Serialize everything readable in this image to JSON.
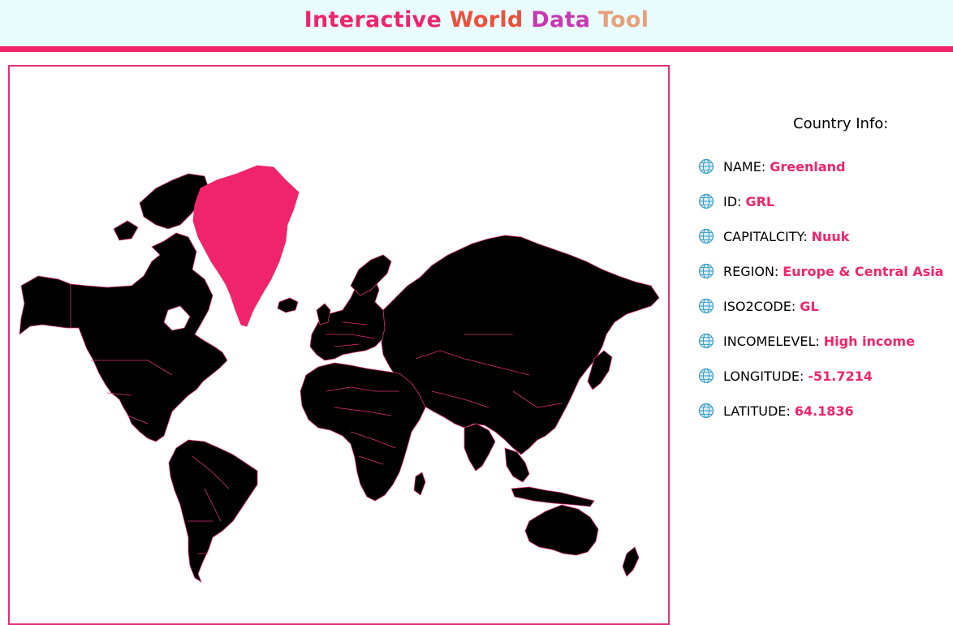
{
  "header": {
    "title_parts": [
      {
        "text": "Interactive",
        "color": "#f0246b"
      },
      {
        "text": "World",
        "color": "#f0503c"
      },
      {
        "text": "Data",
        "color": "#c838b4"
      },
      {
        "text": "Tool",
        "color": "#e6a07a"
      }
    ],
    "bar_color": "#f0246b"
  },
  "map": {
    "selected_country": "Greenland",
    "land_color": "#000000",
    "border_color": "#e0307a",
    "selected_color": "#f0246b"
  },
  "info": {
    "title": "Country Info:",
    "icon": "globe-icon",
    "rows": [
      {
        "key": "NAME:",
        "value": "Greenland"
      },
      {
        "key": "ID:",
        "value": "GRL"
      },
      {
        "key": "CAPITALCITY:",
        "value": "Nuuk"
      },
      {
        "key": "REGION:",
        "value": "Europe & Central Asia"
      },
      {
        "key": "ISO2CODE:",
        "value": "GL"
      },
      {
        "key": "INCOMELEVEL:",
        "value": "High income"
      },
      {
        "key": "LONGITUDE:",
        "value": "-51.7214"
      },
      {
        "key": "LATITUDE:",
        "value": "64.1836"
      }
    ]
  }
}
